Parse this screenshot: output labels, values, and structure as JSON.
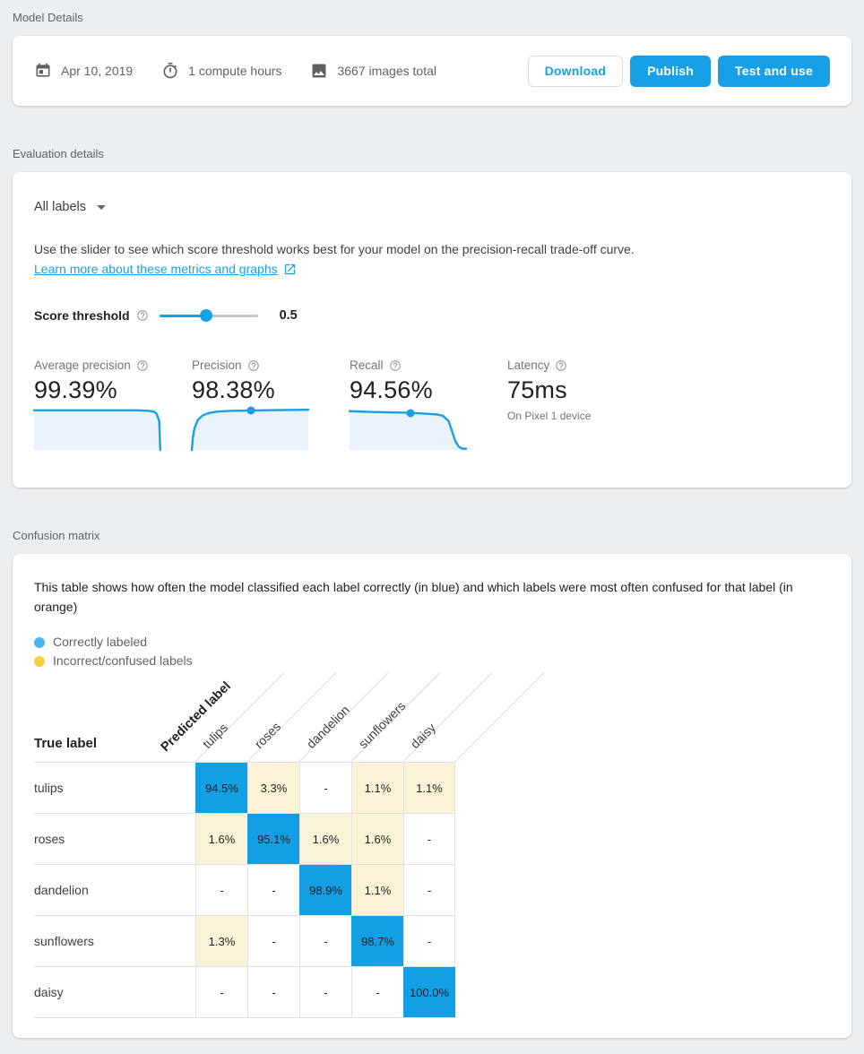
{
  "theme": {
    "page_bg": "#ECEFF1",
    "accent": "#17A0E8",
    "cell_correct": "#129FE4",
    "cell_confused": "#FBF3D8",
    "legend_blue": "#4AB2F0",
    "legend_yellow": "#F8CE46",
    "spark_fill": "#EAF2FB",
    "grid_border": "#E0E0E0"
  },
  "model_details": {
    "section_title": "Model Details",
    "date": "Apr 10, 2019",
    "compute_hours": "1 compute hours",
    "images_total": "3667 images total",
    "buttons": {
      "download": "Download",
      "publish": "Publish",
      "test_and_use": "Test and use"
    }
  },
  "evaluation": {
    "section_title": "Evaluation details",
    "label_filter": "All labels",
    "description": "Use the slider to see which score threshold works best for your model on the precision-recall trade-off curve.",
    "link_text": "Learn more about these metrics and graphs",
    "score_threshold_label": "Score threshold",
    "score_threshold_value": "0.5",
    "metrics": [
      {
        "label": "Average precision",
        "value": "99.39%",
        "spark": [
          [
            0,
            4
          ],
          [
            78,
            4
          ],
          [
            86,
            5
          ],
          [
            91,
            7
          ],
          [
            93,
            12
          ],
          [
            95,
            30
          ],
          [
            95.8,
            100
          ]
        ]
      },
      {
        "label": "Precision",
        "value": "98.38%",
        "spark": [
          [
            0,
            100
          ],
          [
            1,
            68
          ],
          [
            2.5,
            46
          ],
          [
            5,
            28
          ],
          [
            9,
            17
          ],
          [
            14,
            11
          ],
          [
            22,
            7
          ],
          [
            35,
            5
          ],
          [
            51,
            4.5
          ],
          [
            70,
            3.5
          ],
          [
            100,
            2.5
          ]
        ],
        "dot": [
          51,
          4.5
        ]
      },
      {
        "label": "Recall",
        "value": "94.56%",
        "spark": [
          [
            0,
            6
          ],
          [
            20,
            8
          ],
          [
            52,
            10
          ],
          [
            65,
            12
          ],
          [
            75,
            14
          ],
          [
            80,
            17
          ],
          [
            85,
            30
          ],
          [
            88,
            55
          ],
          [
            91,
            80
          ],
          [
            94,
            93
          ],
          [
            97,
            97
          ],
          [
            100,
            97
          ]
        ],
        "dot": [
          52,
          10
        ]
      },
      {
        "label": "Latency",
        "value": "75ms",
        "note": "On Pixel 1 device"
      }
    ]
  },
  "confusion": {
    "section_title": "Confusion matrix",
    "description": "This table shows how often the model classified each label correctly (in blue) and which labels were most often confused for that label (in orange)",
    "legend": [
      {
        "label": "Correctly labeled"
      },
      {
        "label": "Incorrect/confused labels"
      }
    ],
    "true_label_header": "True label",
    "predicted_label_header": "Predicted label",
    "columns": [
      "tulips",
      "roses",
      "dandelion",
      "sunflowers",
      "daisy"
    ],
    "rows": [
      {
        "label": "tulips",
        "cells": [
          "94.5%",
          "3.3%",
          "-",
          "1.1%",
          "1.1%"
        ]
      },
      {
        "label": "roses",
        "cells": [
          "1.6%",
          "95.1%",
          "1.6%",
          "1.6%",
          "-"
        ]
      },
      {
        "label": "dandelion",
        "cells": [
          "-",
          "-",
          "98.9%",
          "1.1%",
          "-"
        ]
      },
      {
        "label": "sunflowers",
        "cells": [
          "1.3%",
          "-",
          "-",
          "98.7%",
          "-"
        ]
      },
      {
        "label": "daisy",
        "cells": [
          "-",
          "-",
          "-",
          "-",
          "100.0%"
        ]
      }
    ]
  }
}
